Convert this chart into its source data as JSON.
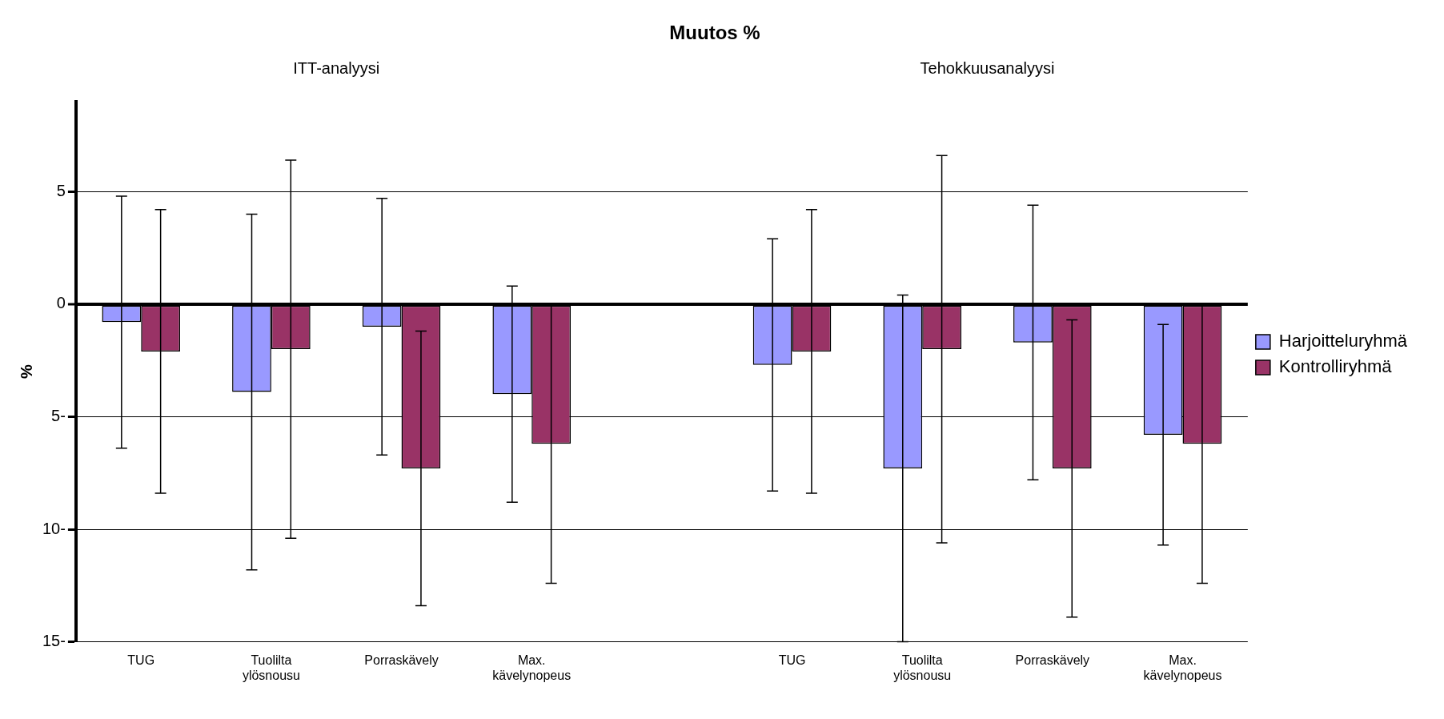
{
  "chart_data": {
    "type": "bar",
    "title": "Muutos %",
    "ylabel": "%",
    "annotations": [
      "ITT-analyysi",
      "Tehokkuusanalyysi"
    ],
    "categories": [
      "TUG",
      "Tuolilta ylösnousu",
      "Porraskävely",
      "Max. kävelynopeus",
      null,
      "TUG",
      "Tuolilta ylösnousu",
      "Porraskävely",
      "Max. kävelynopeus"
    ],
    "series": [
      {
        "name": "Harjoitteluryhmä",
        "color": "#9999ff",
        "values": [
          -0.8,
          -3.9,
          -1.0,
          -4.0,
          null,
          -2.7,
          -7.3,
          -1.7,
          -5.8
        ],
        "errors": [
          5.6,
          7.9,
          5.7,
          4.8,
          null,
          5.6,
          7.7,
          6.1,
          4.9
        ]
      },
      {
        "name": "Kontrolliryhmä",
        "color": "#993366",
        "values": [
          -2.1,
          -2.0,
          -7.3,
          -6.2,
          null,
          -2.1,
          -2.0,
          -7.3,
          -6.2
        ],
        "errors": [
          6.3,
          8.4,
          6.1,
          6.2,
          null,
          6.3,
          8.6,
          6.6,
          6.2
        ]
      }
    ],
    "ylim": [
      -15,
      9
    ],
    "yticks": [
      {
        "value": -15,
        "label": "15-"
      },
      {
        "value": -10,
        "label": "10-"
      },
      {
        "value": -5,
        "label": "5-"
      },
      0,
      5
    ],
    "grid": "y",
    "legend": "right"
  }
}
